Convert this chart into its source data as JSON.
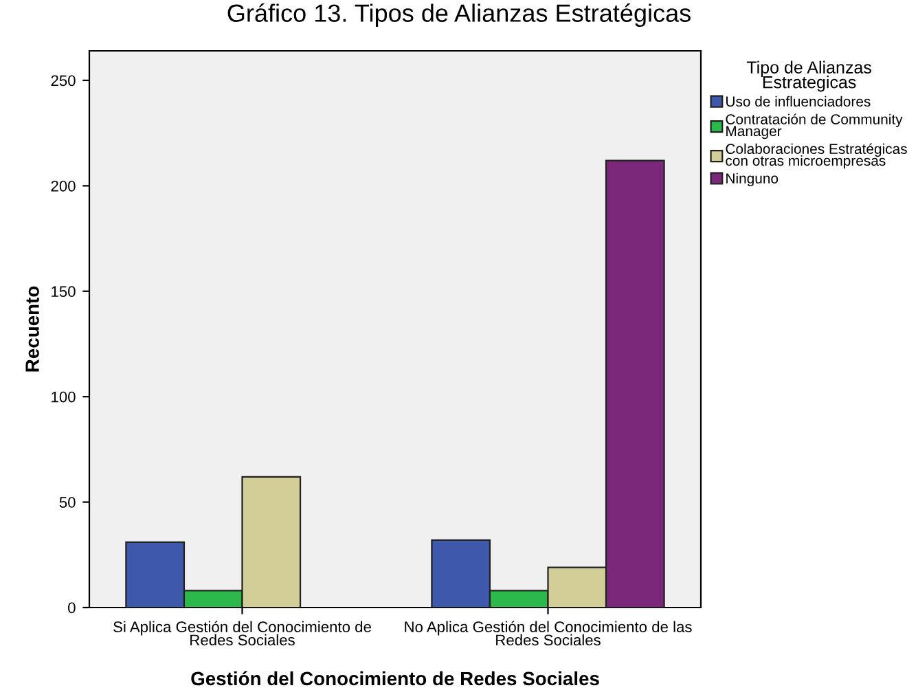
{
  "chart_data": {
    "type": "bar",
    "title": "Gráfico 13. Tipos de Alianzas Estratégicas",
    "xlabel": "Gestión del Conocimiento de Redes Sociales",
    "ylabel": "Recuento",
    "legend_title": "Tipo de Alianzas\nEstrategicas",
    "categories": [
      "Si Aplica Gestión del Conocimiento de\nRedes Sociales",
      "No Aplica Gestión del Conocimiento de las\nRedes Sociales"
    ],
    "series": [
      {
        "name": "Uso de influenciadores",
        "color": "#3e58ac",
        "values": [
          31,
          32
        ]
      },
      {
        "name": "Contratación de Community\nManager",
        "color": "#2db84b",
        "values": [
          8,
          8
        ]
      },
      {
        "name": "Colaboraciones Estratégicas\ncon otras microempresas",
        "color": "#d3ce97",
        "values": [
          62,
          19
        ]
      },
      {
        "name": "Ninguno",
        "color": "#7b287b",
        "values": [
          null,
          212
        ]
      }
    ],
    "ylim": [
      0,
      264
    ],
    "yticks": [
      0,
      50,
      100,
      150,
      200,
      250
    ],
    "grid": false,
    "legend": "right"
  }
}
